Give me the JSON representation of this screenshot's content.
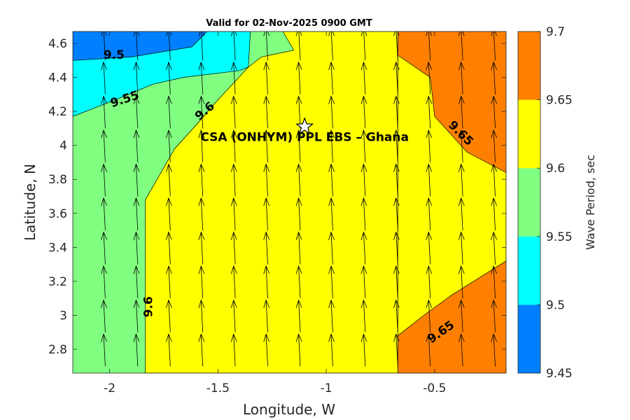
{
  "chart_data": {
    "type": "filled-contour",
    "title": "Valid for 02-Nov-2025 0900 GMT",
    "xlabel": "Longitude, W",
    "ylabel": "Latitude, N",
    "xlim": [
      -2.17,
      -0.17
    ],
    "ylim": [
      2.66,
      4.67
    ],
    "xticks": [
      -2,
      -1.5,
      -1,
      -0.5
    ],
    "xtick_labels": [
      "-2",
      "-1.5",
      "-1",
      "-0.5"
    ],
    "yticks": [
      2.8,
      3.0,
      3.2,
      3.4,
      3.6,
      3.8,
      4.0,
      4.2,
      4.4,
      4.6
    ],
    "ytick_labels": [
      "2.8",
      "3",
      "3.2",
      "3.4",
      "3.6",
      "3.8",
      "4",
      "4.2",
      "4.4",
      "4.6"
    ],
    "colorbar": {
      "label": "Wave Period, sec",
      "levels": [
        9.45,
        9.5,
        9.55,
        9.6,
        9.65,
        9.7
      ],
      "tick_labels": [
        "9.45",
        "9.5",
        "9.55",
        "9.6",
        "9.65",
        "9.7"
      ],
      "colors": [
        "#0080ff",
        "#00ffff",
        "#80ff80",
        "#ffff00",
        "#ff8000"
      ]
    },
    "regions": [
      {
        "name": "9.55-9.6",
        "color": "#80ff80",
        "polygon": [
          [
            -2.17,
            2.66
          ],
          [
            -0.17,
            2.66
          ],
          [
            -0.17,
            4.67
          ],
          [
            -2.17,
            4.67
          ]
        ]
      },
      {
        "name": "9.6-9.65",
        "color": "#ffff00",
        "polygon": [
          [
            -1.835,
            2.66
          ],
          [
            -0.67,
            2.66
          ],
          [
            -0.67,
            4.67
          ],
          [
            -1.2,
            4.67
          ],
          [
            -1.15,
            4.56
          ],
          [
            -1.3,
            4.52
          ],
          [
            -1.36,
            4.46
          ],
          [
            -1.52,
            4.24
          ],
          [
            -1.6,
            4.12
          ],
          [
            -1.7,
            3.98
          ],
          [
            -1.835,
            3.68
          ]
        ]
      },
      {
        "name": "9.6-9.65 east",
        "color": "#ffff00",
        "polygon": [
          [
            -0.67,
            2.66
          ],
          [
            -0.17,
            2.66
          ],
          [
            -0.17,
            4.67
          ],
          [
            -0.67,
            4.67
          ]
        ]
      },
      {
        "name": "9.65-9.7 ne",
        "color": "#ff8000",
        "polygon": [
          [
            -0.67,
            4.67
          ],
          [
            -0.17,
            4.67
          ],
          [
            -0.17,
            3.84
          ],
          [
            -0.35,
            3.96
          ],
          [
            -0.5,
            4.17
          ],
          [
            -0.52,
            4.4
          ],
          [
            -0.67,
            4.53
          ]
        ]
      },
      {
        "name": "9.65-9.7 se",
        "color": "#ff8000",
        "polygon": [
          [
            -0.67,
            2.66
          ],
          [
            -0.17,
            2.66
          ],
          [
            -0.17,
            3.32
          ],
          [
            -0.42,
            3.12
          ],
          [
            -0.55,
            3.0
          ],
          [
            -0.67,
            2.88
          ]
        ]
      },
      {
        "name": "9.5-9.55",
        "color": "#00ffff",
        "polygon": [
          [
            -2.17,
            4.17
          ],
          [
            -1.95,
            4.28
          ],
          [
            -1.8,
            4.36
          ],
          [
            -1.66,
            4.4
          ],
          [
            -1.4,
            4.44
          ],
          [
            -1.36,
            4.46
          ],
          [
            -1.35,
            4.67
          ],
          [
            -2.17,
            4.67
          ]
        ]
      },
      {
        "name": "9.45-9.5",
        "color": "#0080ff",
        "polygon": [
          [
            -2.17,
            4.5
          ],
          [
            -1.9,
            4.52
          ],
          [
            -1.62,
            4.58
          ],
          [
            -1.55,
            4.67
          ],
          [
            -2.17,
            4.67
          ]
        ]
      }
    ],
    "contour_labels": [
      {
        "text": "9.5",
        "lon": -1.98,
        "lat": 4.53,
        "angle": 0
      },
      {
        "text": "9.55",
        "lon": -1.93,
        "lat": 4.27,
        "angle": -18
      },
      {
        "text": "9.6",
        "lon": -1.56,
        "lat": 4.2,
        "angle": -40
      },
      {
        "text": "9.6",
        "lon": -1.82,
        "lat": 3.05,
        "angle": -90
      },
      {
        "text": "9.65",
        "lon": -0.38,
        "lat": 4.07,
        "angle": 45
      },
      {
        "text": "9.65",
        "lon": -0.47,
        "lat": 2.9,
        "angle": -35
      }
    ],
    "annotation": {
      "text": "CSA (ONHYM) PPL EBS  – Ghana",
      "lon": -1.1,
      "lat": 4.05,
      "marker": "star",
      "marker_lon": -1.1,
      "marker_lat": 4.11
    },
    "arrow_lons": [
      -2.02,
      -1.87,
      -1.72,
      -1.57,
      -1.42,
      -1.27,
      -1.12,
      -0.97,
      -0.82,
      -0.67,
      -0.52,
      -0.37,
      -0.22
    ],
    "arrow_lats": [
      2.7,
      2.9,
      3.1,
      3.3,
      3.5,
      3.7,
      3.9,
      4.1,
      4.3,
      4.5
    ],
    "arrow_direction_deg_from_north": 3
  }
}
